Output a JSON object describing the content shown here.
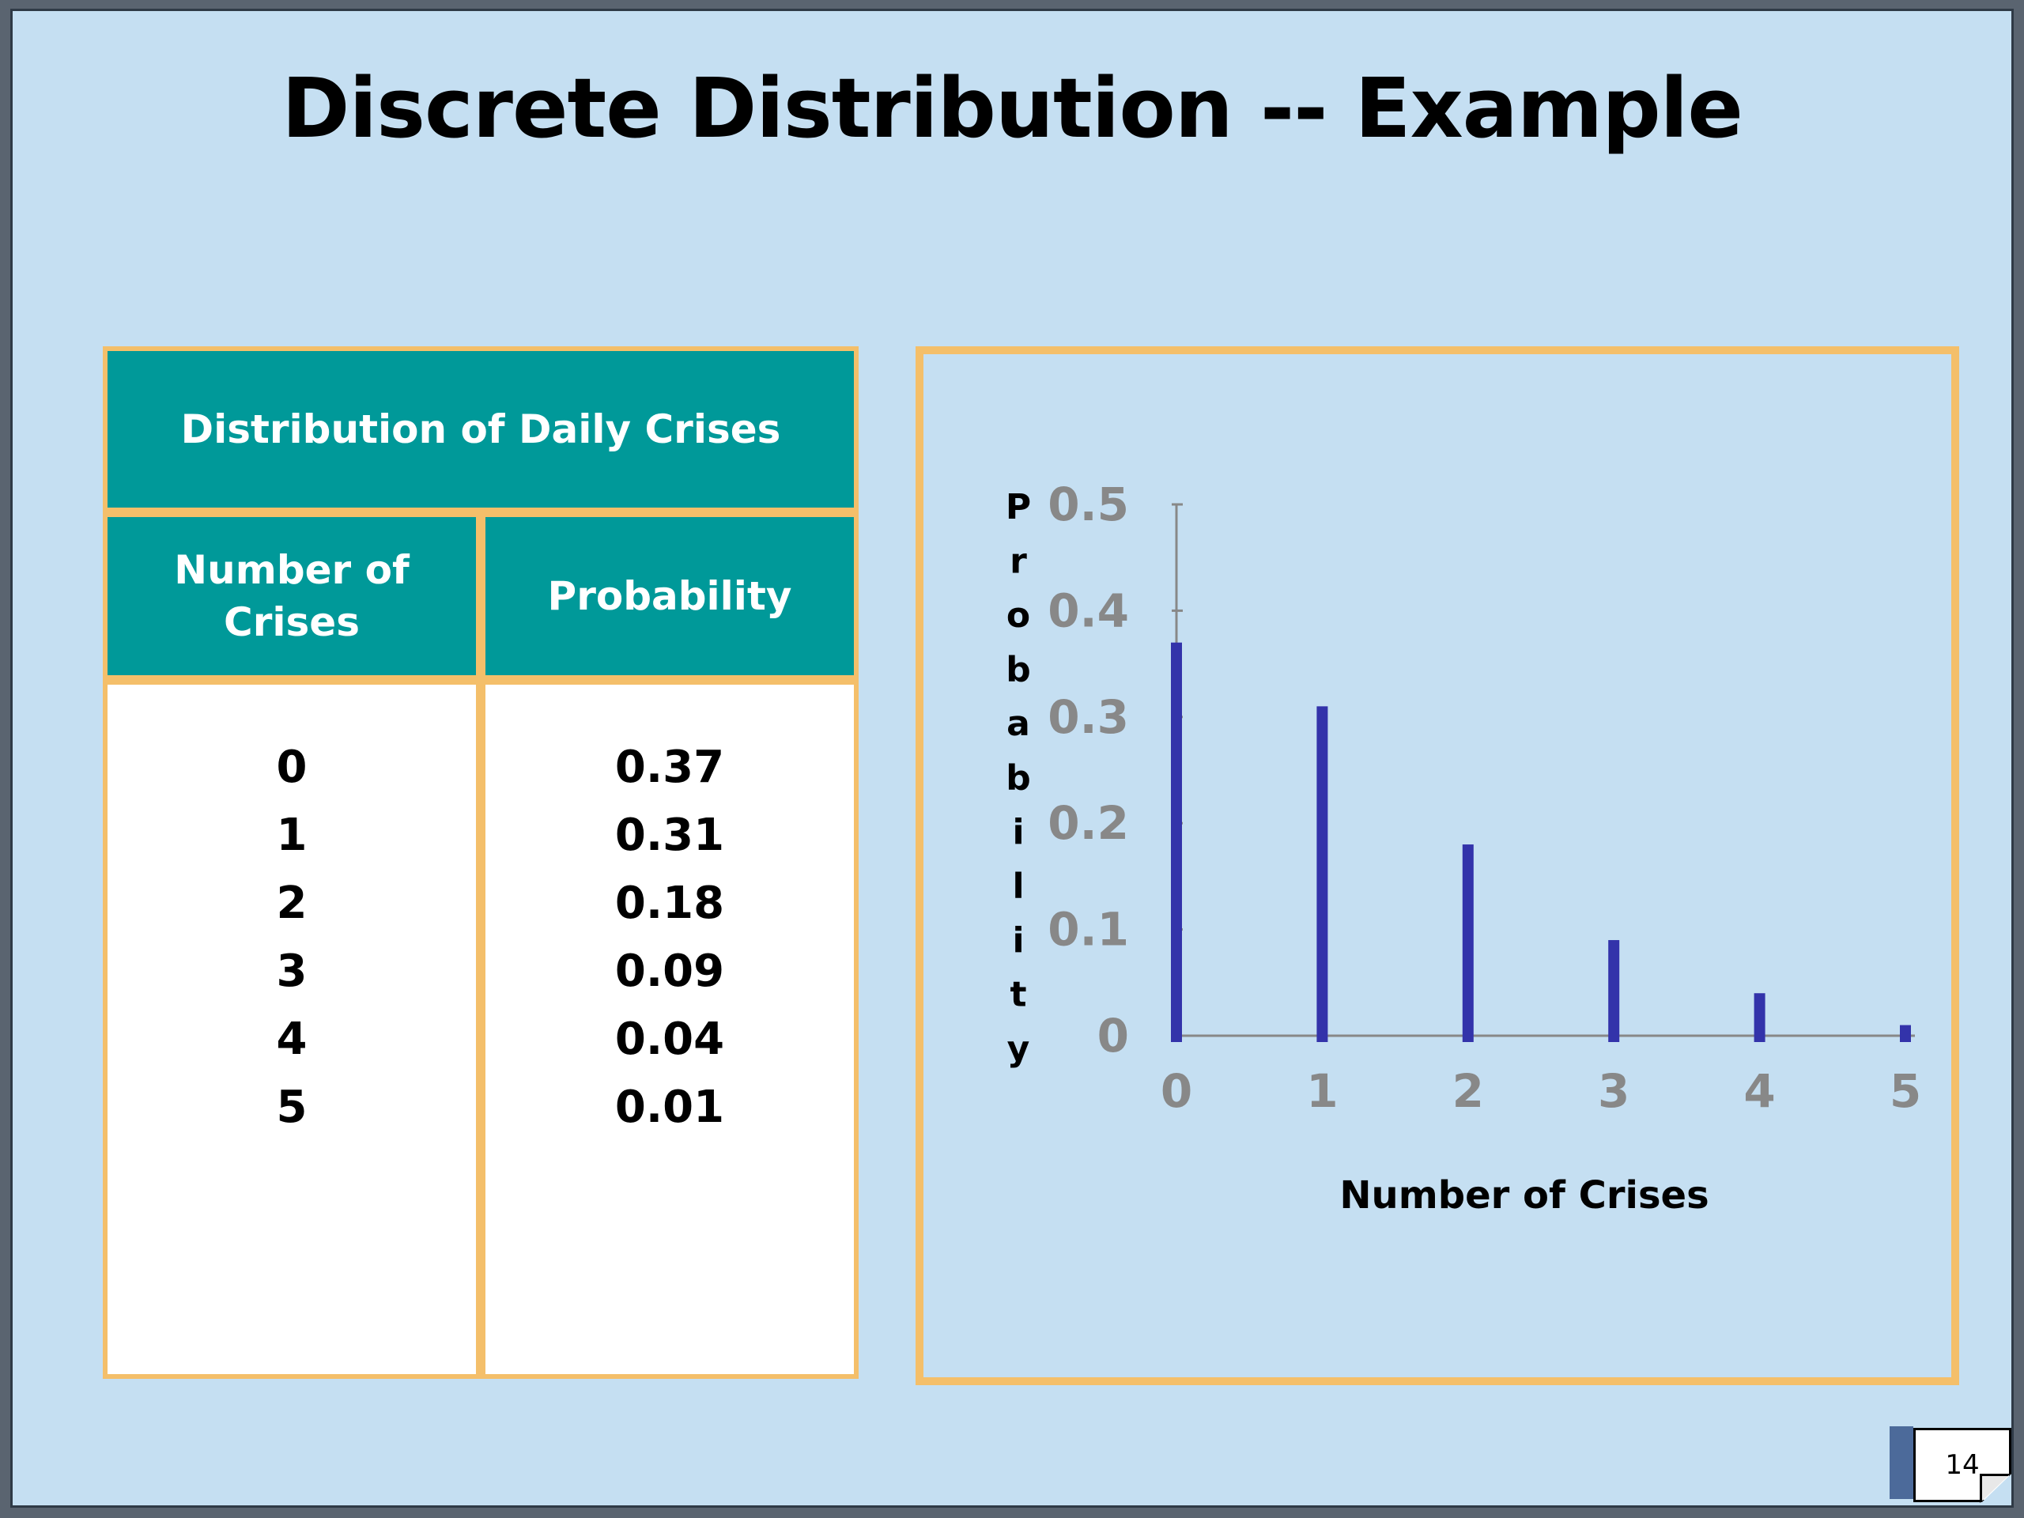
{
  "slide": {
    "title": "Discrete Distribution -- Example",
    "page_number": "14"
  },
  "table": {
    "caption": "Distribution of Daily Crises",
    "headers": [
      "Number of Crises",
      "Probability"
    ],
    "rows": [
      [
        "0",
        "0.37"
      ],
      [
        "1",
        "0.31"
      ],
      [
        "2",
        "0.18"
      ],
      [
        "3",
        "0.09"
      ],
      [
        "4",
        "0.04"
      ],
      [
        "5",
        "0.01"
      ]
    ]
  },
  "chart_data": {
    "type": "bar",
    "categories": [
      "0",
      "1",
      "2",
      "3",
      "4",
      "5"
    ],
    "values": [
      0.37,
      0.31,
      0.18,
      0.09,
      0.04,
      0.01
    ],
    "title": "",
    "xlabel": "Number of Crises",
    "ylabel": "Probability",
    "ylim": [
      0,
      0.5
    ],
    "yticks": [
      "0",
      "0.1",
      "0.2",
      "0.3",
      "0.4",
      "0.5"
    ],
    "grid": false,
    "legend": "none",
    "bar_color": "#3333aa",
    "tick_color": "#888888"
  }
}
